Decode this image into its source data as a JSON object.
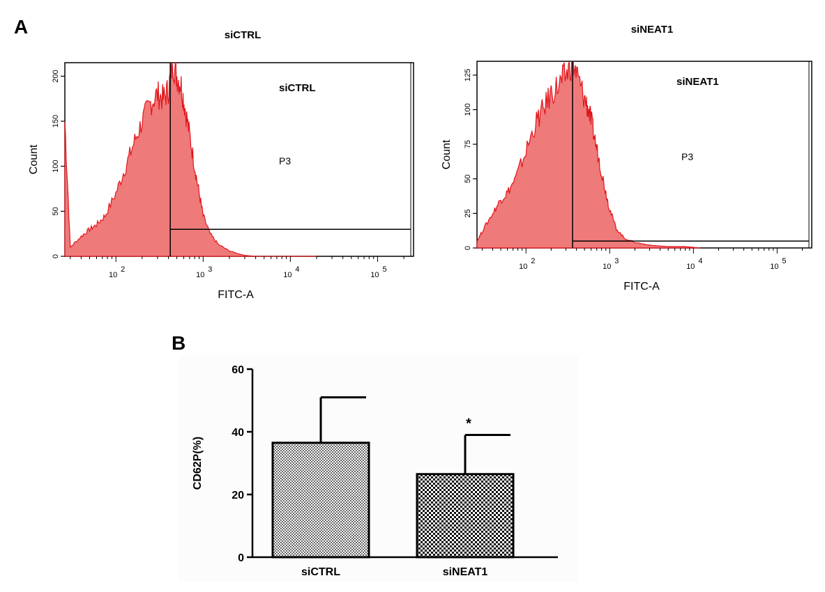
{
  "panels": {
    "a_label": "A",
    "b_label": "B"
  },
  "colors": {
    "hist_fill": "#ef7a7a",
    "hist_line": "#e0161c",
    "axis": "#000000"
  },
  "chart_data": [
    {
      "type": "area",
      "id": "hist1",
      "title": "siCTRL",
      "inner_label": "siCTRL",
      "gate_label": "P3",
      "xlabel": "FITC-A",
      "ylabel": "Count",
      "x_scale": "log",
      "xlim": [
        26,
        240000
      ],
      "ylim": [
        0,
        215
      ],
      "yticks": [
        0,
        50,
        100,
        150,
        200
      ],
      "yticklabels": [
        "0",
        "50",
        "100",
        "150",
        "200"
      ],
      "xticks": [
        100,
        1000,
        10000,
        100000
      ],
      "xticklabels": [
        {
          "base": "10",
          "exp": "2"
        },
        {
          "base": "10",
          "exp": "3"
        },
        {
          "base": "10",
          "exp": "4"
        },
        {
          "base": "10",
          "exp": "5"
        }
      ],
      "gate_vertical_x": 420,
      "gate_horizontal_y": 30,
      "x": [
        26,
        30,
        40,
        50,
        60,
        75,
        100,
        130,
        160,
        200,
        250,
        300,
        350,
        400,
        450,
        500,
        560,
        620,
        700,
        800,
        900,
        1000,
        1200,
        1500,
        2000,
        2500,
        3000,
        4000,
        6000,
        10000,
        20000
      ],
      "y": [
        150,
        10,
        22,
        30,
        35,
        45,
        70,
        100,
        125,
        150,
        170,
        180,
        175,
        185,
        215,
        200,
        190,
        165,
        135,
        100,
        70,
        45,
        25,
        13,
        6,
        3,
        1,
        0,
        0,
        0,
        0
      ]
    },
    {
      "type": "area",
      "id": "hist2",
      "title": "siNEAT1",
      "inner_label": "siNEAT1",
      "gate_label": "P3",
      "xlabel": "FITC-A",
      "ylabel": "Count",
      "x_scale": "log",
      "xlim": [
        26,
        240000
      ],
      "ylim": [
        0,
        135
      ],
      "yticks": [
        0,
        25,
        50,
        75,
        100,
        125
      ],
      "yticklabels": [
        "0",
        "25",
        "50",
        "75",
        "100",
        "125"
      ],
      "xticks": [
        100,
        1000,
        10000,
        100000
      ],
      "xticklabels": [
        {
          "base": "10",
          "exp": "2"
        },
        {
          "base": "10",
          "exp": "3"
        },
        {
          "base": "10",
          "exp": "4"
        },
        {
          "base": "10",
          "exp": "5"
        }
      ],
      "gate_vertical_x": 360,
      "gate_horizontal_y": 5,
      "x": [
        26,
        30,
        40,
        50,
        60,
        75,
        100,
        130,
        160,
        200,
        250,
        300,
        360,
        420,
        500,
        560,
        620,
        700,
        800,
        900,
        1000,
        1200,
        1500,
        2000,
        3000,
        5000,
        8000,
        12000
      ],
      "y": [
        5,
        12,
        25,
        35,
        40,
        50,
        70,
        90,
        100,
        112,
        118,
        125,
        135,
        122,
        108,
        100,
        88,
        72,
        55,
        40,
        28,
        14,
        7,
        4,
        2,
        1,
        1,
        0
      ]
    },
    {
      "type": "bar",
      "id": "bars",
      "ylabel": "CD62P(%)",
      "ylim": [
        0,
        60
      ],
      "yticks": [
        0,
        20,
        40,
        60
      ],
      "yticklabels": [
        "0",
        "20",
        "40",
        "60"
      ],
      "categories": [
        "siCTRL",
        "siNEAT1"
      ],
      "values": [
        36.5,
        26.5
      ],
      "error_upper": [
        51,
        39
      ],
      "significance": [
        "",
        "*"
      ]
    }
  ]
}
